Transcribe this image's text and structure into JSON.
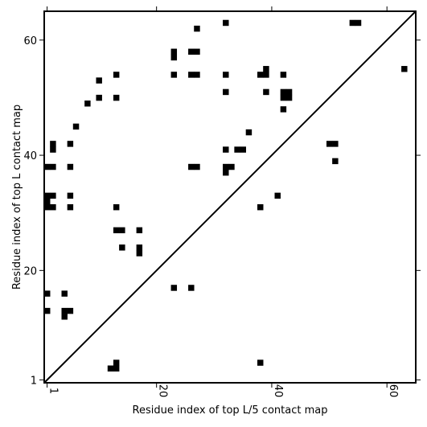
{
  "chart_data": {
    "type": "heatmap",
    "title": "",
    "xlabel": "Residue index of top L/5 contact map",
    "ylabel": "Residue index of top L contact map",
    "xlim": [
      0.5,
      65
    ],
    "ylim": [
      0.5,
      65
    ],
    "xticks": [
      {
        "v": 1,
        "label": "1"
      },
      {
        "v": 20,
        "label": "20"
      },
      {
        "v": 40,
        "label": "40"
      },
      {
        "v": 60,
        "label": "60"
      }
    ],
    "yticks": [
      {
        "v": 1,
        "label": "1"
      },
      {
        "v": 20,
        "label": "20"
      },
      {
        "v": 40,
        "label": "40"
      },
      {
        "v": 60,
        "label": "60"
      }
    ],
    "diagonal": true,
    "cell_color": "#000000",
    "points": [
      [
        32,
        63
      ],
      [
        27,
        62
      ],
      [
        23,
        58
      ],
      [
        23,
        57
      ],
      [
        26,
        58
      ],
      [
        27,
        58
      ],
      [
        13,
        54
      ],
      [
        23,
        54
      ],
      [
        26,
        54
      ],
      [
        27,
        54
      ],
      [
        32,
        54
      ],
      [
        38,
        54
      ],
      [
        39,
        54
      ],
      [
        39,
        55
      ],
      [
        42,
        54
      ],
      [
        10,
        53
      ],
      [
        32,
        51
      ],
      [
        39,
        51
      ],
      [
        42,
        51
      ],
      [
        43,
        51
      ],
      [
        42,
        50
      ],
      [
        43,
        50
      ],
      [
        10,
        50
      ],
      [
        13,
        50
      ],
      [
        8,
        49
      ],
      [
        42,
        48
      ],
      [
        6,
        45
      ],
      [
        36,
        44
      ],
      [
        2,
        42
      ],
      [
        2,
        41
      ],
      [
        5,
        42
      ],
      [
        32,
        41
      ],
      [
        34,
        41
      ],
      [
        35,
        41
      ],
      [
        1,
        38
      ],
      [
        2,
        38
      ],
      [
        5,
        38
      ],
      [
        26,
        38
      ],
      [
        27,
        38
      ],
      [
        32,
        38
      ],
      [
        33,
        38
      ],
      [
        32,
        37
      ],
      [
        1,
        33
      ],
      [
        2,
        33
      ],
      [
        5,
        33
      ],
      [
        1,
        32
      ],
      [
        1,
        31
      ],
      [
        2,
        31
      ],
      [
        5,
        31
      ],
      [
        13,
        31
      ],
      [
        38,
        31
      ],
      [
        41,
        33
      ],
      [
        50,
        42
      ],
      [
        51,
        42
      ],
      [
        51,
        39
      ],
      [
        13,
        27
      ],
      [
        14,
        27
      ],
      [
        17,
        27
      ],
      [
        14,
        24
      ],
      [
        17,
        24
      ],
      [
        17,
        23
      ],
      [
        23,
        17
      ],
      [
        26,
        17
      ],
      [
        1,
        16
      ],
      [
        4,
        16
      ],
      [
        1,
        13
      ],
      [
        4,
        13
      ],
      [
        5,
        13
      ],
      [
        4,
        12
      ],
      [
        12,
        3
      ],
      [
        13,
        3
      ],
      [
        13,
        4
      ],
      [
        38,
        4
      ],
      [
        54,
        63
      ],
      [
        55,
        63
      ],
      [
        63,
        55
      ]
    ]
  }
}
